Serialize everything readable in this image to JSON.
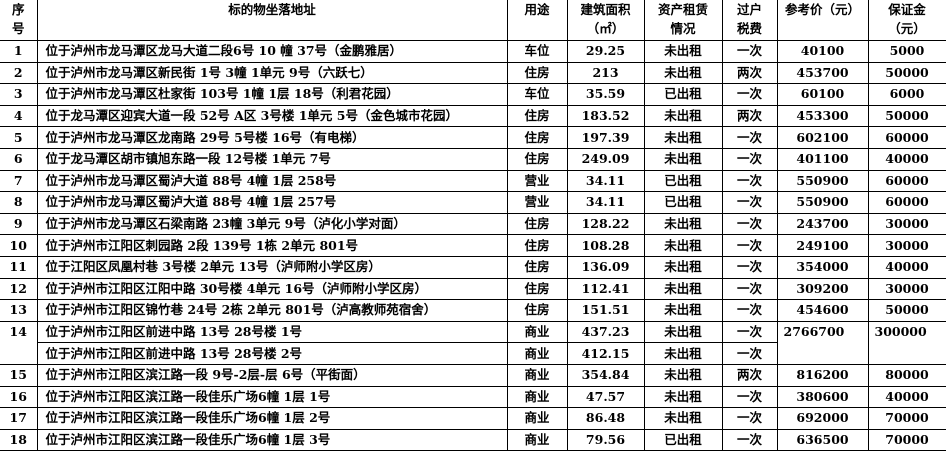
{
  "headers": {
    "seq": [
      "序",
      "号"
    ],
    "address": "标的物坐落地址",
    "use": "用途",
    "area": [
      "建筑面积",
      "（㎡）"
    ],
    "lease": [
      "资产租赁",
      "情况"
    ],
    "tax": [
      "过户",
      "税费"
    ],
    "price": "参考价（元）",
    "deposit": [
      "保证金",
      "（元）"
    ]
  },
  "rows": [
    {
      "seq": "1",
      "address": "位于泸州市龙马潭区龙马大道二段6号 10 幢 37号（金鹏雅居）",
      "use": "车位",
      "area": "29.25",
      "lease": "未出租",
      "tax": "一次",
      "price": "40100",
      "deposit": "5000"
    },
    {
      "seq": "2",
      "address": "位于泸州市龙马潭区新民街 1号 3幢 1单元 9号（六跃七）",
      "use": "住房",
      "area": "213",
      "lease": "未出租",
      "tax": "两次",
      "price": "453700",
      "deposit": "50000"
    },
    {
      "seq": "3",
      "address": "位于泸州市龙马潭区杜家街 103号 1幢 1层 18号（利君花园）",
      "use": "车位",
      "area": "35.59",
      "lease": "已出租",
      "tax": "一次",
      "price": "60100",
      "deposit": "6000"
    },
    {
      "seq": "4",
      "address": "位于龙马潭区迎宾大道一段 52号 A区 3号楼 1单元 5号（金色城市花园）",
      "use": "住房",
      "area": "183.52",
      "lease": "未出租",
      "tax": "两次",
      "price": "453300",
      "deposit": "50000"
    },
    {
      "seq": "5",
      "address": "位于泸州市龙马潭区龙南路 29号 5号楼 16号（有电梯）",
      "use": "住房",
      "area": "197.39",
      "lease": "未出租",
      "tax": "一次",
      "price": "602100",
      "deposit": "60000"
    },
    {
      "seq": "6",
      "address": "位于龙马潭区胡市镇旭东路一段 12号楼 1单元 7号",
      "use": "住房",
      "area": "249.09",
      "lease": "未出租",
      "tax": "一次",
      "price": "401100",
      "deposit": "40000"
    },
    {
      "seq": "7",
      "address": "位于泸州市龙马潭区蜀泸大道 88号 4幢 1层 258号",
      "use": "营业",
      "area": "34.11",
      "lease": "已出租",
      "tax": "一次",
      "price": "550900",
      "deposit": "60000"
    },
    {
      "seq": "8",
      "address": "位于泸州市龙马潭区蜀泸大道 88号 4幢 1层 257号",
      "use": "营业",
      "area": "34.11",
      "lease": "已出租",
      "tax": "一次",
      "price": "550900",
      "deposit": "60000"
    },
    {
      "seq": "9",
      "address": "位于泸州市龙马潭区石梁南路 23幢 3单元 9号（泸化小学对面）",
      "use": "住房",
      "area": "128.22",
      "lease": "未出租",
      "tax": "一次",
      "price": "243700",
      "deposit": "30000"
    },
    {
      "seq": "10",
      "address": "位于泸州市江阳区刺园路 2段 139号 1栋 2单元 801号",
      "use": "住房",
      "area": "108.28",
      "lease": "未出租",
      "tax": "一次",
      "price": "249100",
      "deposit": "30000"
    },
    {
      "seq": "11",
      "address": "位于江阳区凤凰村巷 3号楼 2单元 13号（泸师附小学区房）",
      "use": "住房",
      "area": "136.09",
      "lease": "未出租",
      "tax": "一次",
      "price": "354000",
      "deposit": "40000"
    },
    {
      "seq": "12",
      "address": "位于泸州市江阳区江阳中路 30号楼 4单元 16号（泸师附小学区房）",
      "use": "住房",
      "area": "112.41",
      "lease": "未出租",
      "tax": "一次",
      "price": "309200",
      "deposit": "30000"
    },
    {
      "seq": "13",
      "address": "位于泸州市江阳区锦竹巷 24号 2栋 2单元 801号（泸高教师苑宿舍）",
      "use": "住房",
      "area": "151.51",
      "lease": "未出租",
      "tax": "一次",
      "price": "454600",
      "deposit": "50000"
    },
    {
      "seq": "14",
      "address": "位于泸州市江阳区前进中路 13号 28号楼 1号",
      "use": "商业",
      "area": "437.23",
      "lease": "未出租",
      "tax": "一次",
      "price": "2766700",
      "deposit": "300000",
      "sub": {
        "address": "位于泸州市江阳区前进中路 13号 28号楼 2号",
        "use": "商业",
        "area": "412.15",
        "lease": "未出租",
        "tax": "一次"
      }
    },
    {
      "seq": "15",
      "address": "位于泸州市江阳区滨江路一段 9号-2层-层 6号（平街面）",
      "use": "商业",
      "area": "354.84",
      "lease": "未出租",
      "tax": "两次",
      "price": "816200",
      "deposit": "80000"
    },
    {
      "seq": "16",
      "address": "位于泸州市江阳区滨江路一段佳乐广场6幢 1层 1号",
      "use": "商业",
      "area": "47.57",
      "lease": "未出租",
      "tax": "一次",
      "price": "380600",
      "deposit": "40000"
    },
    {
      "seq": "17",
      "address": "位于泸州市江阳区滨江路一段佳乐广场6幢 1层 2号",
      "use": "商业",
      "area": "86.48",
      "lease": "未出租",
      "tax": "一次",
      "price": "692000",
      "deposit": "70000"
    },
    {
      "seq": "18",
      "address": "位于泸州市江阳区滨江路一段佳乐广场6幢 1层 3号",
      "use": "商业",
      "area": "79.56",
      "lease": "已出租",
      "tax": "一次",
      "price": "636500",
      "deposit": "70000"
    }
  ]
}
